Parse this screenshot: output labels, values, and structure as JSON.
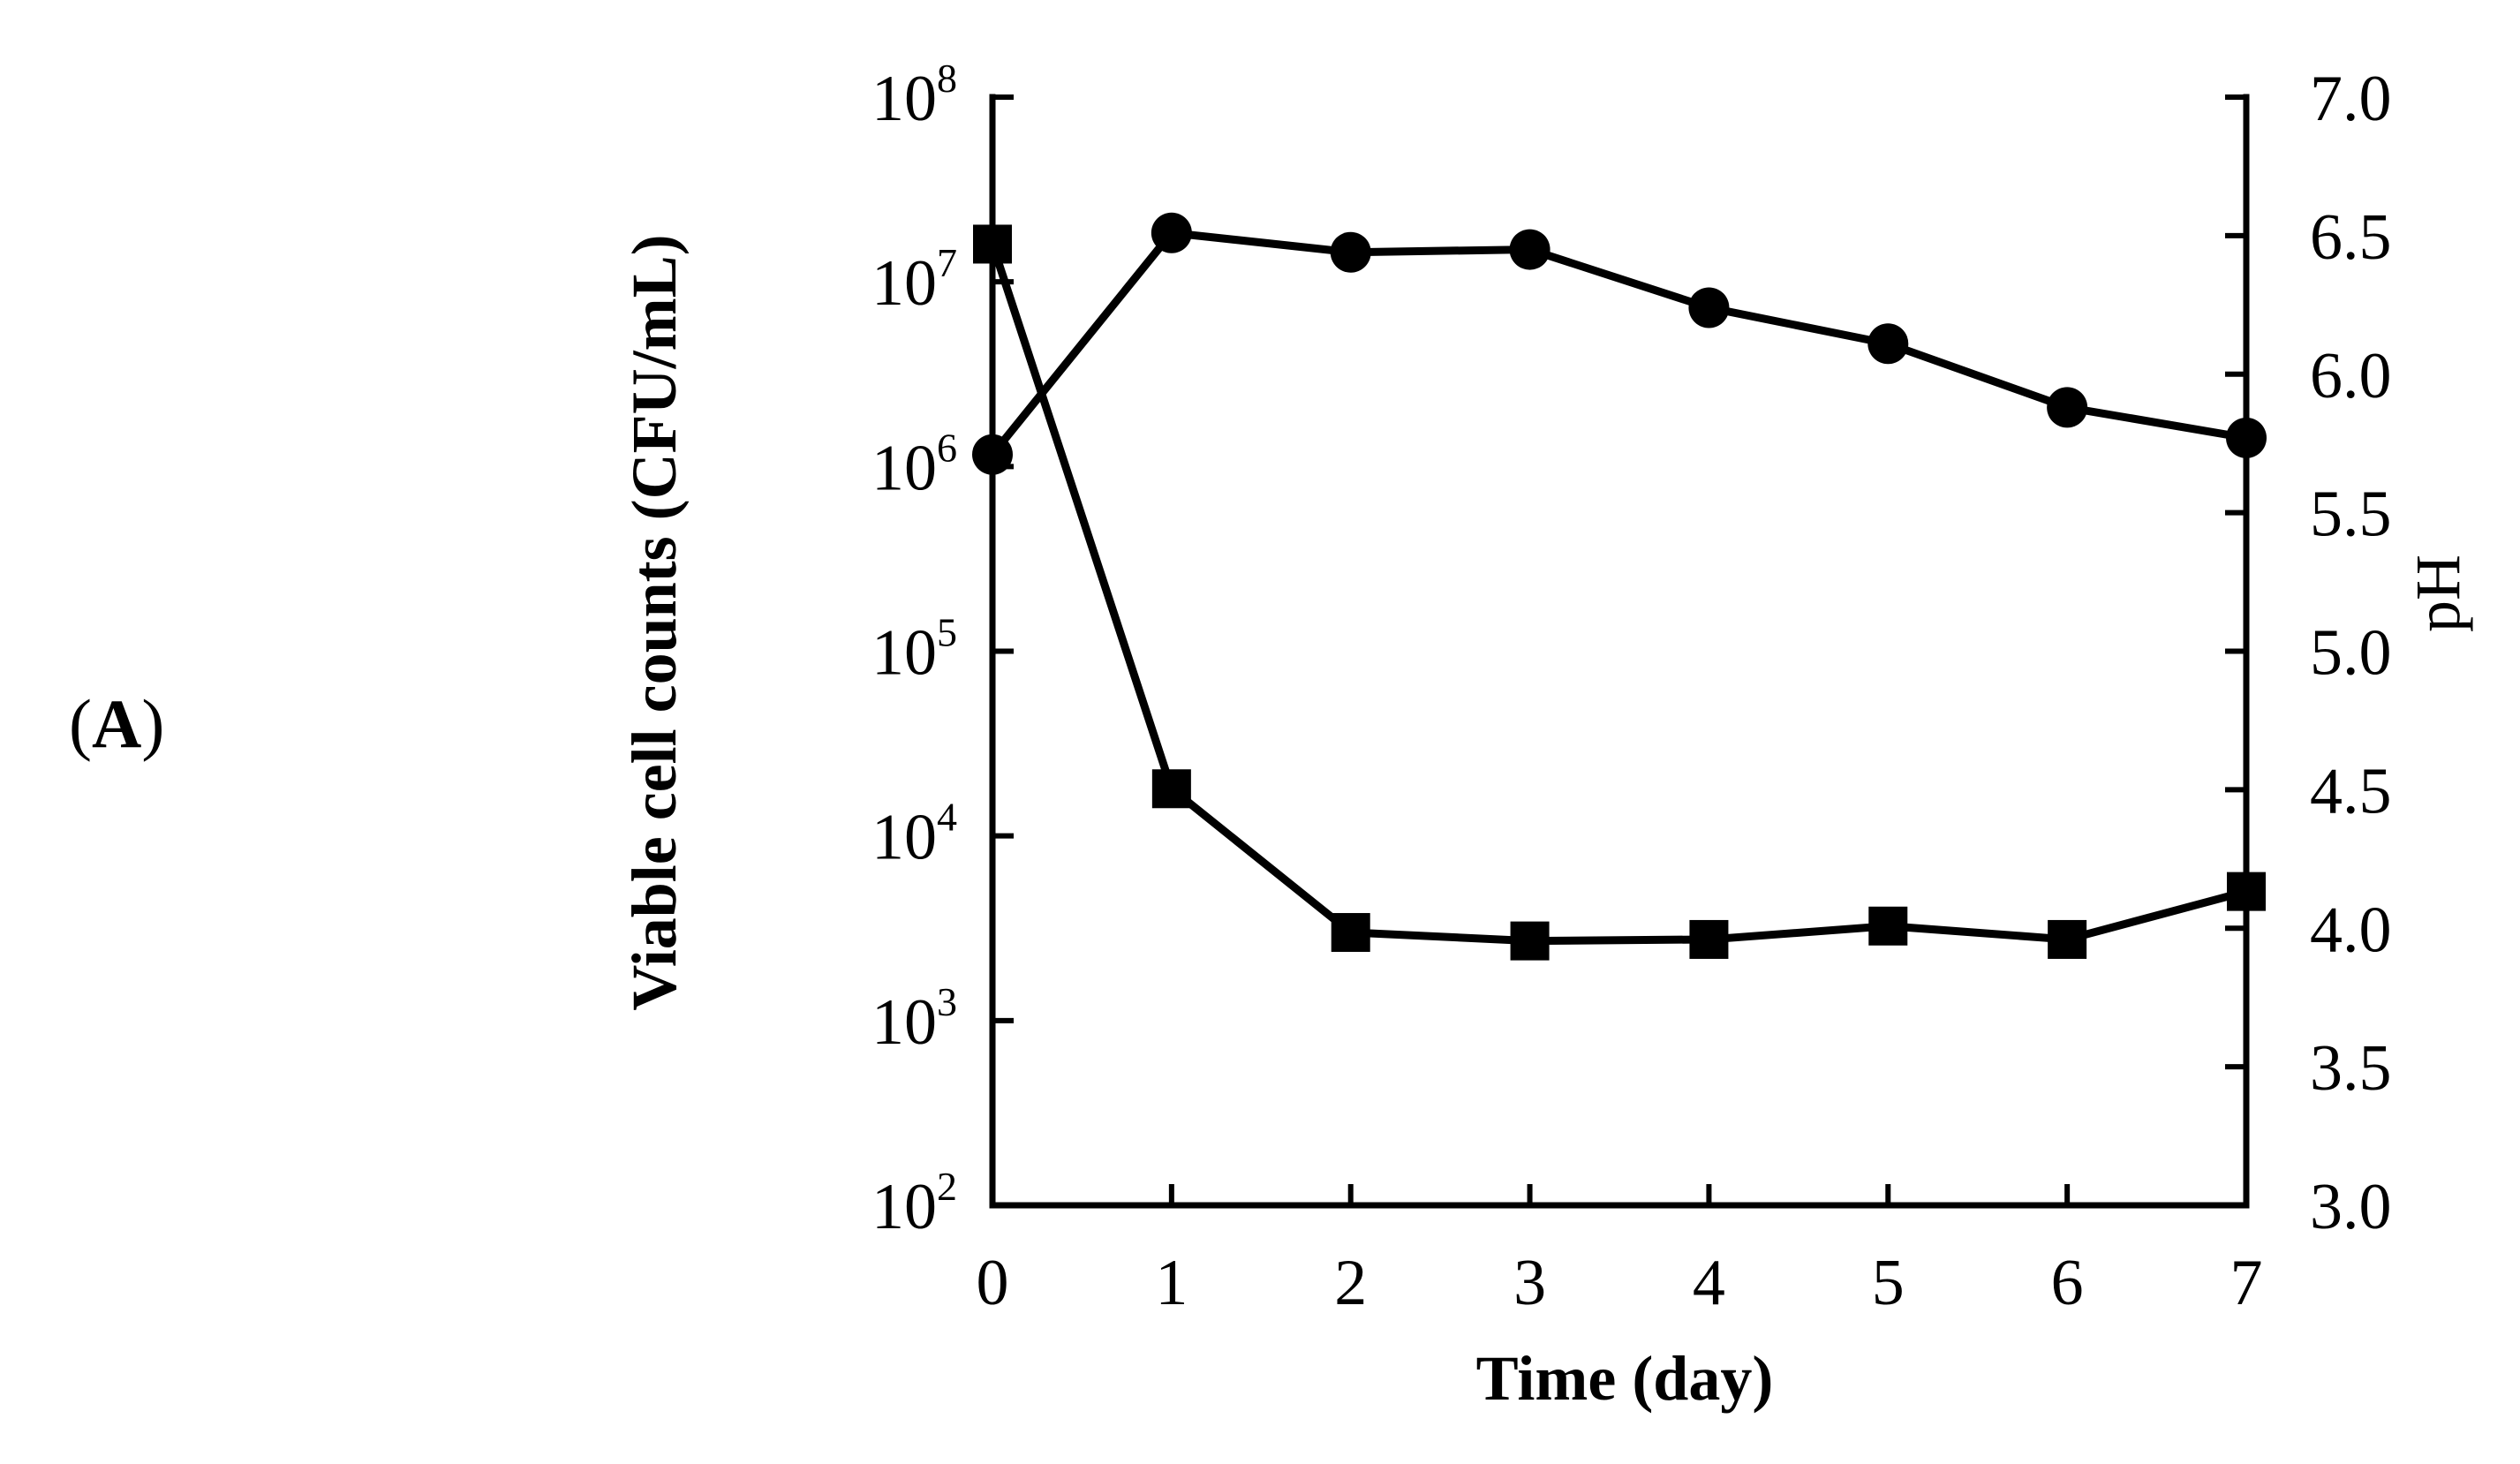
{
  "panel_label": {
    "open": "(",
    "letter": "A",
    "close": ")"
  },
  "chart_data": {
    "type": "line",
    "title": "",
    "xlabel": "Time (day)",
    "ylabel": "Viable cell counts (CFU/mL)",
    "y2label": "pH",
    "x": [
      0,
      1,
      2,
      3,
      4,
      5,
      6,
      7
    ],
    "xlim": [
      0,
      7
    ],
    "x_ticks": [
      "0",
      "1",
      "2",
      "3",
      "4",
      "5",
      "6",
      "7"
    ],
    "yscale": "log",
    "ylim": [
      100,
      100000000
    ],
    "y_ticks": [
      {
        "base": "10",
        "exp": "2"
      },
      {
        "base": "10",
        "exp": "3"
      },
      {
        "base": "10",
        "exp": "4"
      },
      {
        "base": "10",
        "exp": "5"
      },
      {
        "base": "10",
        "exp": "6"
      },
      {
        "base": "10",
        "exp": "7"
      },
      {
        "base": "10",
        "exp": "8"
      }
    ],
    "y2lim": [
      3.0,
      7.0
    ],
    "y2_ticks": [
      "3.0",
      "3.5",
      "4.0",
      "4.5",
      "5.0",
      "5.5",
      "6.0",
      "6.5",
      "7.0"
    ],
    "grid": false,
    "series": [
      {
        "name": "Viable cell counts",
        "axis": "left",
        "marker": "square",
        "values": [
          16000000,
          18000,
          3000,
          2700,
          2750,
          3250,
          2750,
          5000
        ]
      },
      {
        "name": "pH",
        "axis": "right",
        "marker": "circle",
        "values": [
          5.71,
          6.51,
          6.44,
          6.45,
          6.24,
          6.11,
          5.88,
          5.77
        ]
      }
    ]
  }
}
